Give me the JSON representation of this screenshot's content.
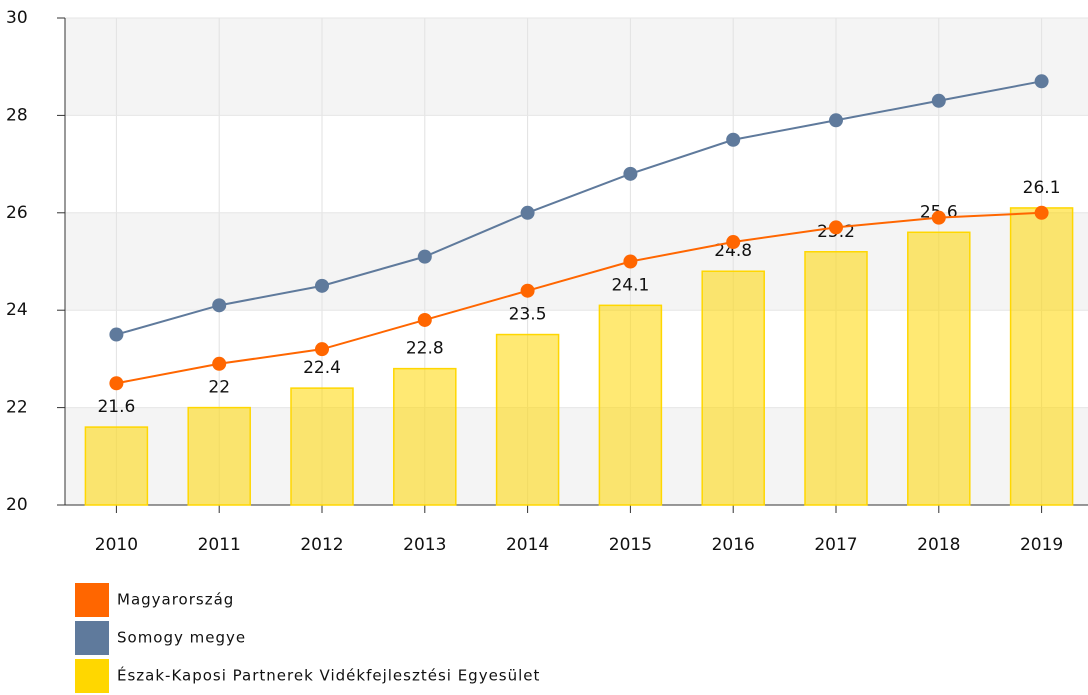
{
  "chart_data": {
    "type": "bar",
    "categories": [
      "2010",
      "2011",
      "2012",
      "2013",
      "2014",
      "2015",
      "2016",
      "2017",
      "2018",
      "2019"
    ],
    "ylim": [
      20,
      30
    ],
    "yticks": [
      20,
      22,
      24,
      26,
      28,
      30
    ],
    "grid": true,
    "series": [
      {
        "name": "Magyarország",
        "type": "line",
        "color": "#ff6600",
        "values": [
          22.5,
          22.9,
          23.2,
          23.8,
          24.4,
          25.0,
          25.4,
          25.7,
          25.9,
          26.0
        ]
      },
      {
        "name": "Somogy megye",
        "type": "line",
        "color": "#5f7a9c",
        "values": [
          23.5,
          24.1,
          24.5,
          25.1,
          26.0,
          26.8,
          27.5,
          27.9,
          28.3,
          28.7
        ]
      },
      {
        "name": "Észak-Kaposi Partnerek Vidékfejlesztési Egyesület",
        "type": "bar",
        "color": "#ffd700",
        "values": [
          21.6,
          22,
          22.4,
          22.8,
          23.5,
          24.1,
          24.8,
          25.2,
          25.6,
          26.1
        ]
      }
    ]
  }
}
